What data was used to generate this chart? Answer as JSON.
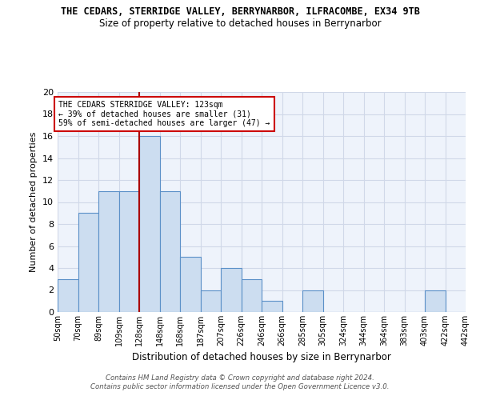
{
  "title_line1": "THE CEDARS, STERRIDGE VALLEY, BERRYNARBOR, ILFRACOMBE, EX34 9TB",
  "title_line2": "Size of property relative to detached houses in Berrynarbor",
  "xlabel": "Distribution of detached houses by size in Berrynarbor",
  "ylabel": "Number of detached properties",
  "bin_labels": [
    "50sqm",
    "70sqm",
    "89sqm",
    "109sqm",
    "128sqm",
    "148sqm",
    "168sqm",
    "187sqm",
    "207sqm",
    "226sqm",
    "246sqm",
    "266sqm",
    "285sqm",
    "305sqm",
    "324sqm",
    "344sqm",
    "364sqm",
    "383sqm",
    "403sqm",
    "422sqm",
    "442sqm"
  ],
  "bar_values": [
    3,
    9,
    11,
    11,
    16,
    11,
    5,
    2,
    4,
    3,
    1,
    0,
    2,
    0,
    0,
    0,
    0,
    0,
    2,
    0
  ],
  "bar_color": "#ccddf0",
  "bar_edgecolor": "#5b90c8",
  "grid_color": "#d0d8e8",
  "background_color": "#eef3fb",
  "vline_x_index": 4,
  "vline_color": "#aa0000",
  "annotation_text": "THE CEDARS STERRIDGE VALLEY: 123sqm\n← 39% of detached houses are smaller (31)\n59% of semi-detached houses are larger (47) →",
  "annotation_box_edgecolor": "#cc0000",
  "ylim": [
    0,
    20
  ],
  "yticks": [
    0,
    2,
    4,
    6,
    8,
    10,
    12,
    14,
    16,
    18,
    20
  ],
  "footer": "Contains HM Land Registry data © Crown copyright and database right 2024.\nContains public sector information licensed under the Open Government Licence v3.0."
}
